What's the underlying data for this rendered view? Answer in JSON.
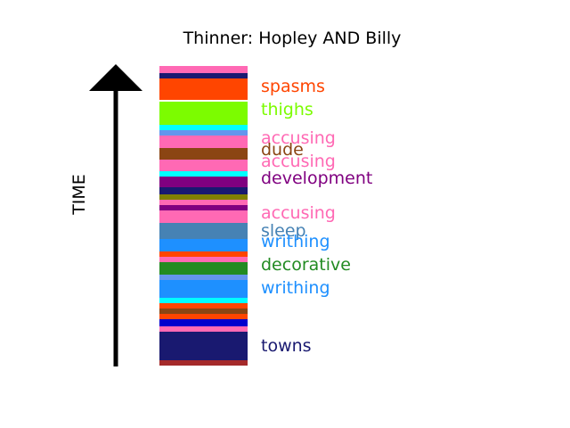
{
  "chart_data": {
    "type": "bar",
    "title": "Thinner: Hopley AND Billy",
    "ylabel": "TIME",
    "bands": [
      {
        "color": "#ff69b4"
      },
      {
        "color": "#191970"
      },
      {
        "color": "#ff4500",
        "label": "spasms"
      },
      {
        "color": "#ff4500"
      },
      {
        "color": "#ffffff"
      },
      {
        "color": "#7cfc00",
        "label": "thighs"
      },
      {
        "color": "#7cfc00"
      },
      {
        "color": "#00ffff"
      },
      {
        "color": "#6495ed"
      },
      {
        "color": "#ff69b4",
        "label": "accusing"
      },
      {
        "color": "#8b4513",
        "label": "dude"
      },
      {
        "color": "#ff69b4",
        "label": "accusing"
      },
      {
        "color": "#00ffff"
      },
      {
        "color": "#800080",
        "label": "development"
      },
      {
        "color": "#191970"
      },
      {
        "color": "#808000"
      },
      {
        "color": "#ff69b4"
      },
      {
        "color": "#800080"
      },
      {
        "color": "#ff69b4",
        "label": "accusing"
      },
      {
        "color": "#4682b4",
        "label": "sleep"
      },
      {
        "color": "#1e90ff",
        "label": "writhing"
      },
      {
        "color": "#ff4500"
      },
      {
        "color": "#ff69b4"
      },
      {
        "color": "#228b22",
        "label": "decorative"
      },
      {
        "color": "#6495ed"
      },
      {
        "color": "#1e90ff",
        "label": "writhing"
      },
      {
        "color": "#00ffff"
      },
      {
        "color": "#ff4500"
      },
      {
        "color": "#8b4513"
      },
      {
        "color": "#ff4500"
      },
      {
        "color": "#0000cd"
      },
      {
        "color": "#ff69b4"
      },
      {
        "color": "#191970",
        "label": "towns"
      },
      {
        "color": "#a52a2a"
      }
    ]
  },
  "bands_layout_note_removed": true
}
